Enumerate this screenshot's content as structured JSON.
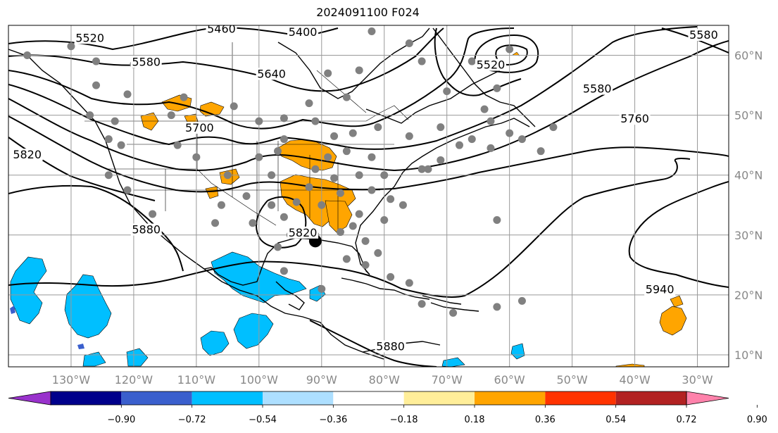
{
  "title": "2024091100 F024",
  "map": {
    "projection": "plate-carree",
    "lon_range": [
      -140,
      -25
    ],
    "lat_range": [
      8,
      65
    ],
    "lon_ticks": [
      {
        "value": -130,
        "label": "130°W"
      },
      {
        "value": -120,
        "label": "120°W"
      },
      {
        "value": -110,
        "label": "110°W"
      },
      {
        "value": -100,
        "label": "100°W"
      },
      {
        "value": -90,
        "label": "90°W"
      },
      {
        "value": -80,
        "label": "80°W"
      },
      {
        "value": -70,
        "label": "70°W"
      },
      {
        "value": -60,
        "label": "60°W"
      },
      {
        "value": -50,
        "label": "50°W"
      },
      {
        "value": -40,
        "label": "40°W"
      },
      {
        "value": -30,
        "label": "30°W"
      }
    ],
    "lat_ticks": [
      {
        "value": 60,
        "label": "60°N"
      },
      {
        "value": 50,
        "label": "50°N"
      },
      {
        "value": 40,
        "label": "40°N"
      },
      {
        "value": 30,
        "label": "30°N"
      },
      {
        "value": 20,
        "label": "20°N"
      },
      {
        "value": 10,
        "label": "10°N"
      }
    ],
    "gridlines": true,
    "contour_labels": [
      {
        "text": "5520",
        "lon": -127,
        "lat": 62.5
      },
      {
        "text": "5460",
        "lon": -106,
        "lat": 64
      },
      {
        "text": "5400",
        "lon": -93,
        "lat": 63.5
      },
      {
        "text": "5580",
        "lon": -118,
        "lat": 58.5
      },
      {
        "text": "5640",
        "lon": -98,
        "lat": 56.5
      },
      {
        "text": "5700",
        "lon": -109.5,
        "lat": 47.5
      },
      {
        "text": "5820",
        "lon": -137,
        "lat": 43
      },
      {
        "text": "5880",
        "lon": -118,
        "lat": 30.5
      },
      {
        "text": "5820",
        "lon": -93,
        "lat": 30
      },
      {
        "text": "5520",
        "lon": -63,
        "lat": 58
      },
      {
        "text": "5580",
        "lon": -46,
        "lat": 54
      },
      {
        "text": "5760",
        "lon": -40,
        "lat": 49
      },
      {
        "text": "5580",
        "lon": -29,
        "lat": 63
      },
      {
        "text": "5940",
        "lon": -36,
        "lat": 20.5
      },
      {
        "text": "5880",
        "lon": -79,
        "lat": 11
      }
    ],
    "stations": [
      [
        -137,
        60
      ],
      [
        -130,
        61.5
      ],
      [
        -126,
        59
      ],
      [
        -120,
        58.5
      ],
      [
        -126,
        55
      ],
      [
        -121,
        53.5
      ],
      [
        -127,
        50
      ],
      [
        -123,
        49
      ],
      [
        -124,
        46
      ],
      [
        -124,
        40
      ],
      [
        -122,
        45
      ],
      [
        -121,
        37.5
      ],
      [
        -117,
        33.5
      ],
      [
        -114,
        50
      ],
      [
        -112,
        53
      ],
      [
        -111,
        48
      ],
      [
        -113,
        45
      ],
      [
        -110,
        43
      ],
      [
        -106,
        35
      ],
      [
        -105,
        40
      ],
      [
        -107,
        32
      ],
      [
        -104,
        51.5
      ],
      [
        -100,
        49
      ],
      [
        -96,
        49.5
      ],
      [
        -91,
        49
      ],
      [
        -96,
        46
      ],
      [
        -97,
        44
      ],
      [
        -100,
        43
      ],
      [
        -98,
        40
      ],
      [
        -98,
        35
      ],
      [
        -102,
        36.5
      ],
      [
        -101,
        32
      ],
      [
        -96,
        33
      ],
      [
        -94,
        35.5
      ],
      [
        -92,
        38
      ],
      [
        -91,
        41
      ],
      [
        -89,
        43
      ],
      [
        -86,
        44
      ],
      [
        -85,
        47
      ],
      [
        -82,
        43
      ],
      [
        -80,
        40
      ],
      [
        -82,
        37.5
      ],
      [
        -84,
        33.5
      ],
      [
        -85,
        31.5
      ],
      [
        -80,
        32.5
      ],
      [
        -77,
        35
      ],
      [
        -74,
        41
      ],
      [
        -71,
        42.5
      ],
      [
        -68,
        45
      ],
      [
        -66,
        46
      ],
      [
        -63,
        44.5
      ],
      [
        -60,
        47
      ],
      [
        -63,
        49
      ],
      [
        -64,
        51
      ],
      [
        -53,
        48
      ],
      [
        -58,
        46
      ],
      [
        -62,
        54.5
      ],
      [
        -70,
        54
      ],
      [
        -74,
        59
      ],
      [
        -76,
        62
      ],
      [
        -82,
        64
      ],
      [
        -84,
        57.5
      ],
      [
        -86,
        53
      ],
      [
        -89,
        57
      ],
      [
        -92,
        52
      ],
      [
        -81,
        48
      ],
      [
        -88,
        46.5
      ],
      [
        -76,
        46.5
      ],
      [
        -71,
        48
      ],
      [
        -66,
        59
      ],
      [
        -60,
        61
      ],
      [
        -73,
        41
      ],
      [
        -79,
        36
      ],
      [
        -91,
        30
      ],
      [
        -95,
        30
      ],
      [
        -96,
        24
      ],
      [
        -90,
        21
      ],
      [
        -86,
        26
      ],
      [
        -83,
        25
      ],
      [
        -81,
        27
      ],
      [
        -83,
        29
      ],
      [
        -76,
        22
      ],
      [
        -79,
        23
      ],
      [
        -74,
        18.5
      ],
      [
        -69,
        17
      ],
      [
        -62,
        18
      ],
      [
        -58,
        19
      ],
      [
        -62,
        32.5
      ],
      [
        -55,
        44
      ],
      [
        -97,
        28
      ],
      [
        -90,
        35
      ],
      [
        -88,
        39.5
      ],
      [
        -87,
        37
      ],
      [
        -84,
        40
      ],
      [
        -87,
        30.5
      ]
    ],
    "cyclone_center": {
      "lon": -91,
      "lat": 29
    }
  },
  "colorbar": {
    "ticks": [
      "−0.90",
      "−0.72",
      "−0.54",
      "−0.36",
      "−0.18",
      "0.18",
      "0.36",
      "0.54",
      "0.72",
      "0.90"
    ],
    "colors": [
      "#9932CC",
      "#00008B",
      "#3A5FCD",
      "#00BFFF",
      "#ADDFFF",
      "#FFFFFF",
      "#FFEE99",
      "#FFA500",
      "#FF3300",
      "#B22222",
      "#FF82AB"
    ]
  }
}
